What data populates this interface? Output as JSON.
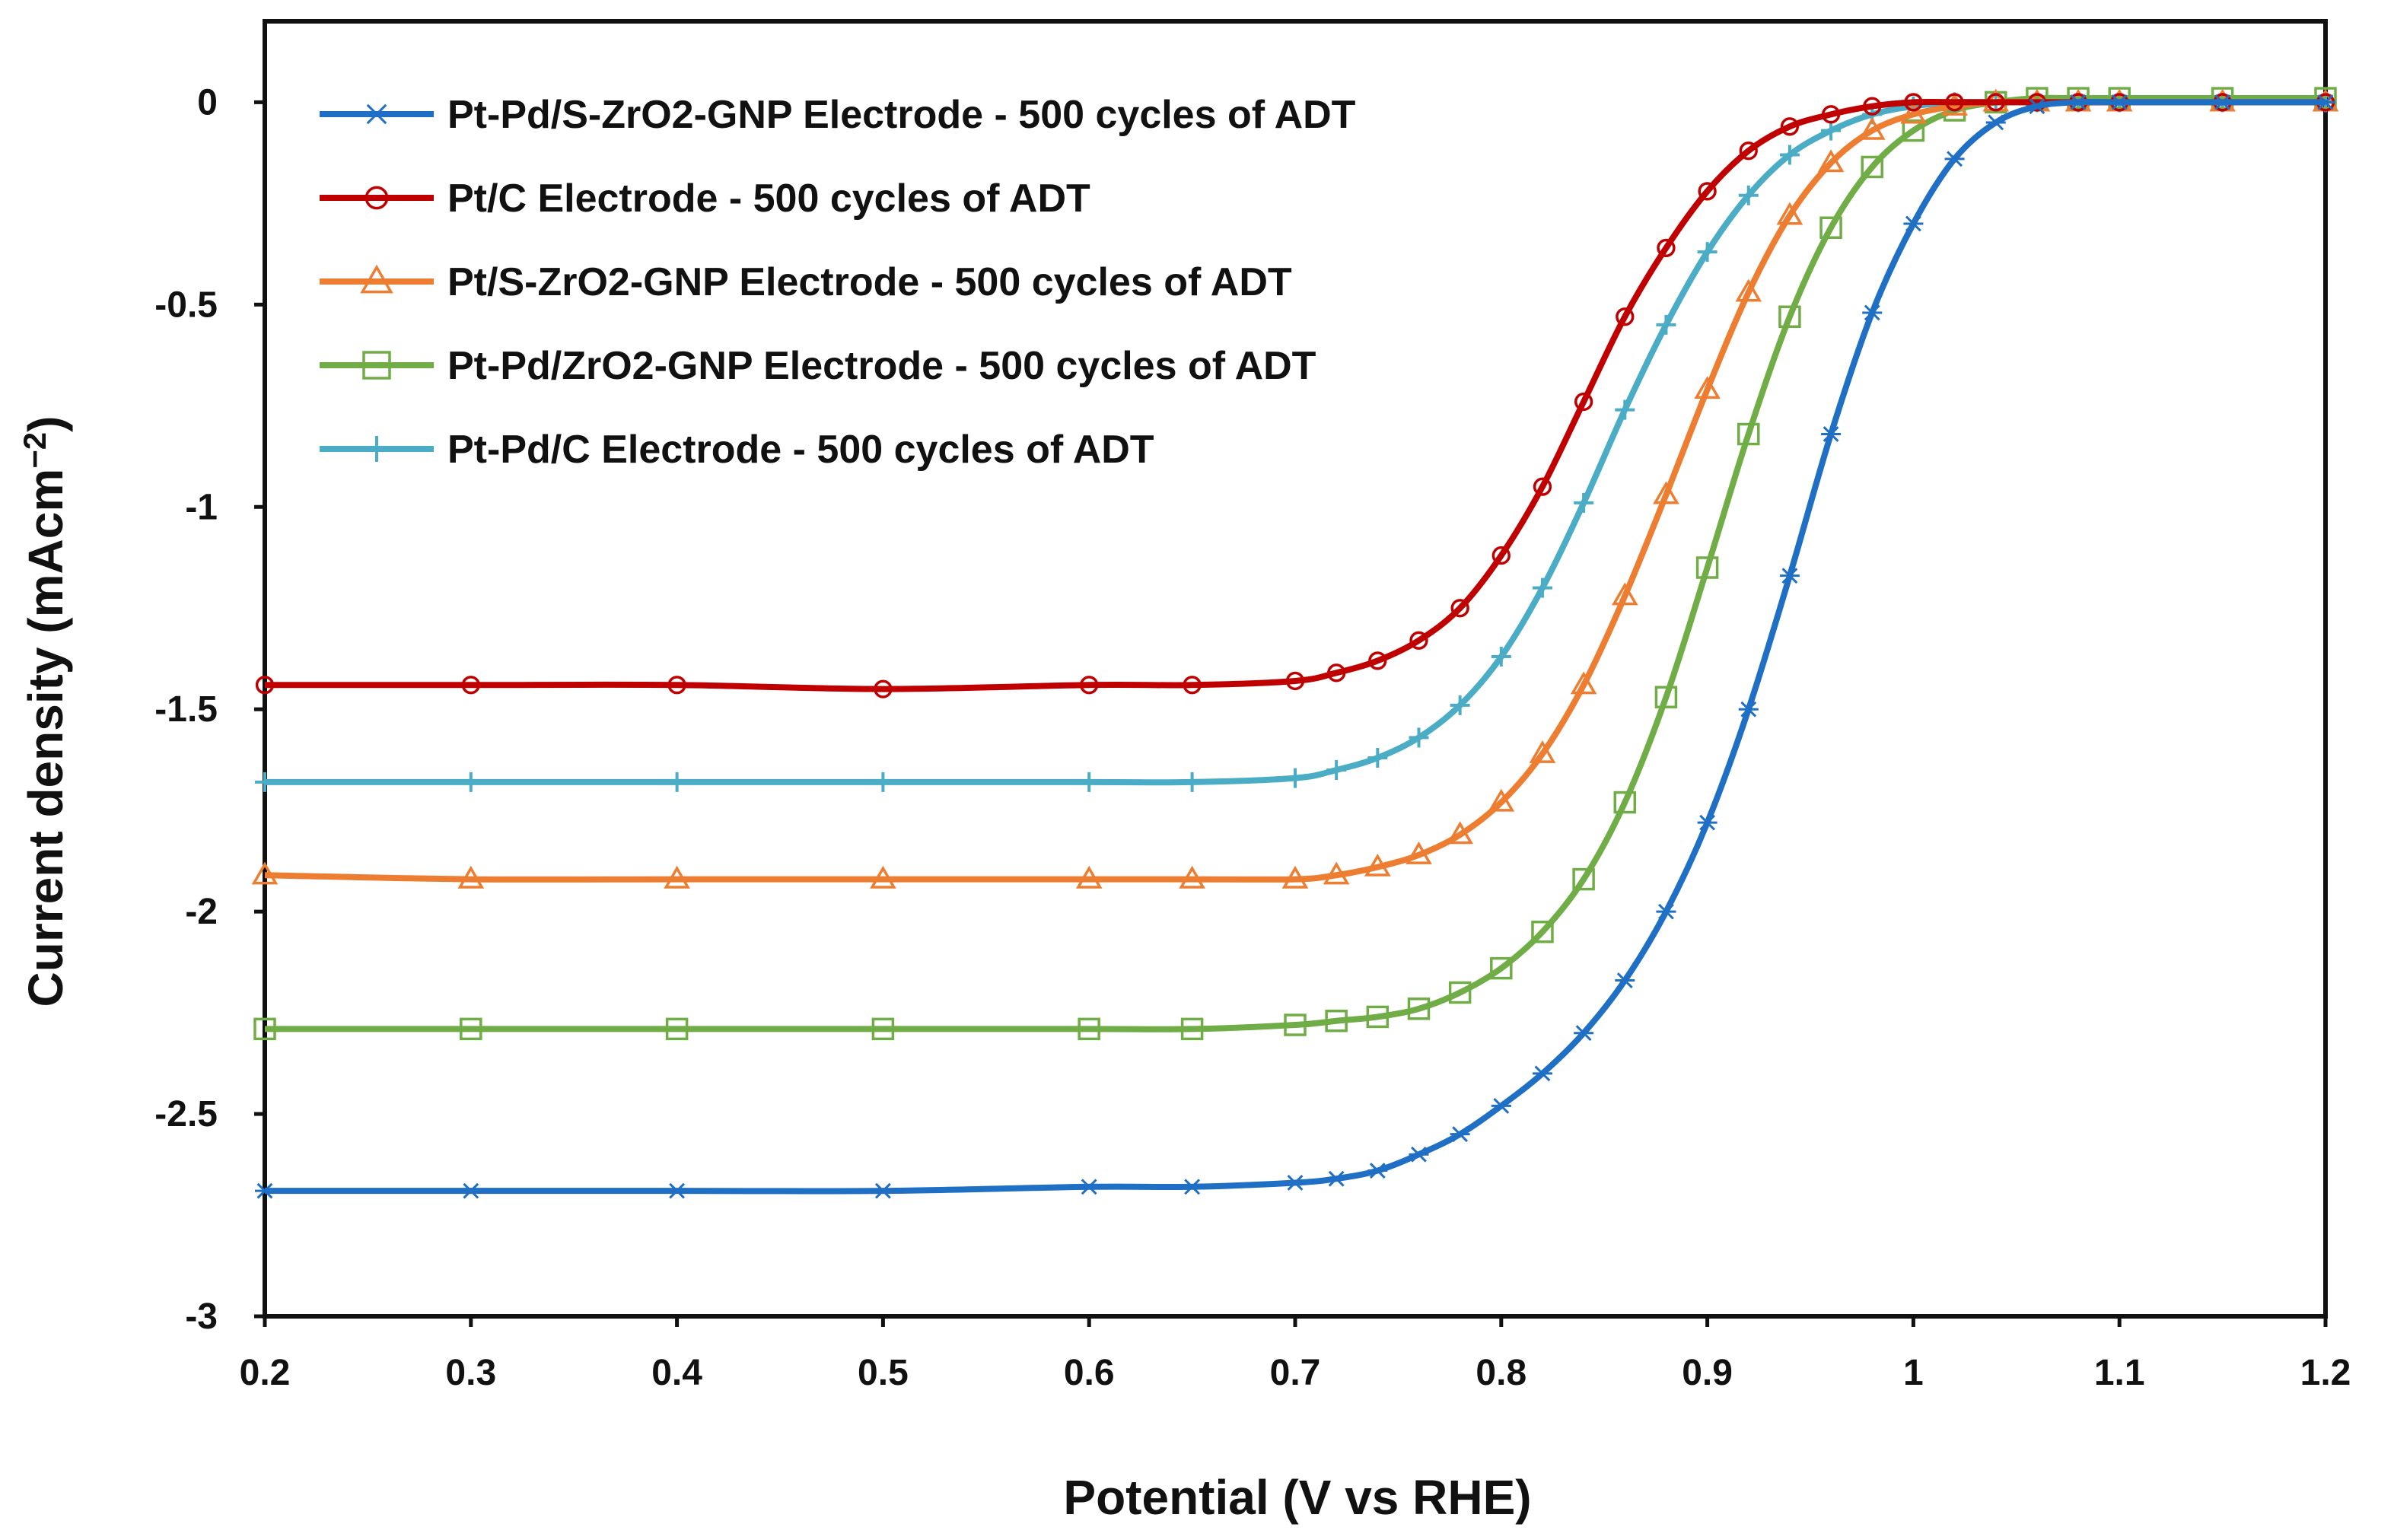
{
  "chart_data": {
    "type": "line",
    "title": "",
    "xlabel": "Potential (V vs RHE)",
    "ylabel": "Current density (mAcm",
    "ylabel_sup": "−2",
    "ylabel_close": ")",
    "xlim": [
      0.2,
      1.2
    ],
    "ylim": [
      -3,
      0.2
    ],
    "x_ticks": [
      0.2,
      0.3,
      0.4,
      0.5,
      0.6,
      0.7,
      0.8,
      0.9,
      1.0,
      1.1,
      1.2
    ],
    "x_tick_labels": [
      "0.2",
      "0.3",
      "0.4",
      "0.5",
      "0.6",
      "0.7",
      "0.8",
      "0.9",
      "1",
      "1.1",
      "1.2"
    ],
    "y_ticks": [
      0,
      -0.5,
      -1,
      -1.5,
      -2,
      -2.5,
      -3
    ],
    "y_tick_labels": [
      "0",
      "-0.5",
      "-1",
      "-1.5",
      "-2",
      "-2.5",
      "-3"
    ],
    "grid": false,
    "legend_position": "top-left",
    "x": [
      0.2,
      0.3,
      0.4,
      0.5,
      0.6,
      0.65,
      0.7,
      0.72,
      0.74,
      0.76,
      0.78,
      0.8,
      0.82,
      0.84,
      0.86,
      0.88,
      0.9,
      0.92,
      0.94,
      0.96,
      0.98,
      1.0,
      1.02,
      1.04,
      1.06,
      1.08,
      1.1,
      1.15,
      1.2
    ],
    "series": [
      {
        "name": "Pt-Pd/S-ZrO2-GNP Electrode - 500 cycles of ADT",
        "color": "#1f6fc5",
        "marker": "asterisk",
        "values": [
          -2.69,
          -2.69,
          -2.69,
          -2.69,
          -2.68,
          -2.68,
          -2.67,
          -2.66,
          -2.64,
          -2.6,
          -2.55,
          -2.48,
          -2.4,
          -2.3,
          -2.17,
          -2.0,
          -1.78,
          -1.5,
          -1.17,
          -0.82,
          -0.52,
          -0.3,
          -0.14,
          -0.05,
          -0.01,
          0.0,
          0.0,
          0.0,
          0.0
        ]
      },
      {
        "name": "Pt/C Electrode - 500 cycles of ADT",
        "color": "#c00000",
        "marker": "circle",
        "values": [
          -1.44,
          -1.44,
          -1.44,
          -1.45,
          -1.44,
          -1.44,
          -1.43,
          -1.41,
          -1.38,
          -1.33,
          -1.25,
          -1.12,
          -0.95,
          -0.74,
          -0.53,
          -0.36,
          -0.22,
          -0.12,
          -0.06,
          -0.03,
          -0.01,
          0.0,
          0.0,
          0.0,
          0.0,
          0.0,
          0.0,
          0.0,
          0.0
        ]
      },
      {
        "name": "Pt/S-ZrO2-GNP Electrode - 500 cycles of ADT",
        "color": "#ed7d31",
        "marker": "triangle",
        "values": [
          -1.91,
          -1.92,
          -1.92,
          -1.92,
          -1.92,
          -1.92,
          -1.92,
          -1.91,
          -1.89,
          -1.86,
          -1.81,
          -1.73,
          -1.61,
          -1.44,
          -1.22,
          -0.97,
          -0.71,
          -0.47,
          -0.28,
          -0.15,
          -0.07,
          -0.03,
          -0.01,
          0.0,
          0.0,
          0.0,
          0.0,
          0.0,
          0.0
        ]
      },
      {
        "name": "Pt-Pd/ZrO2-GNP Electrode - 500 cycles of ADT",
        "color": "#70ad47",
        "marker": "square",
        "values": [
          -2.29,
          -2.29,
          -2.29,
          -2.29,
          -2.29,
          -2.29,
          -2.28,
          -2.27,
          -2.26,
          -2.24,
          -2.2,
          -2.14,
          -2.05,
          -1.92,
          -1.73,
          -1.47,
          -1.15,
          -0.82,
          -0.53,
          -0.31,
          -0.16,
          -0.07,
          -0.02,
          0.0,
          0.01,
          0.01,
          0.01,
          0.01,
          0.01
        ]
      },
      {
        "name": "Pt-Pd/C Electrode - 500 cycles of ADT",
        "color": "#4bacc6",
        "marker": "plus",
        "values": [
          -1.68,
          -1.68,
          -1.68,
          -1.68,
          -1.68,
          -1.68,
          -1.67,
          -1.65,
          -1.62,
          -1.57,
          -1.49,
          -1.37,
          -1.2,
          -0.99,
          -0.76,
          -0.55,
          -0.37,
          -0.23,
          -0.13,
          -0.07,
          -0.03,
          -0.01,
          0.0,
          0.0,
          0.0,
          0.0,
          0.0,
          0.0,
          0.0
        ]
      }
    ]
  }
}
